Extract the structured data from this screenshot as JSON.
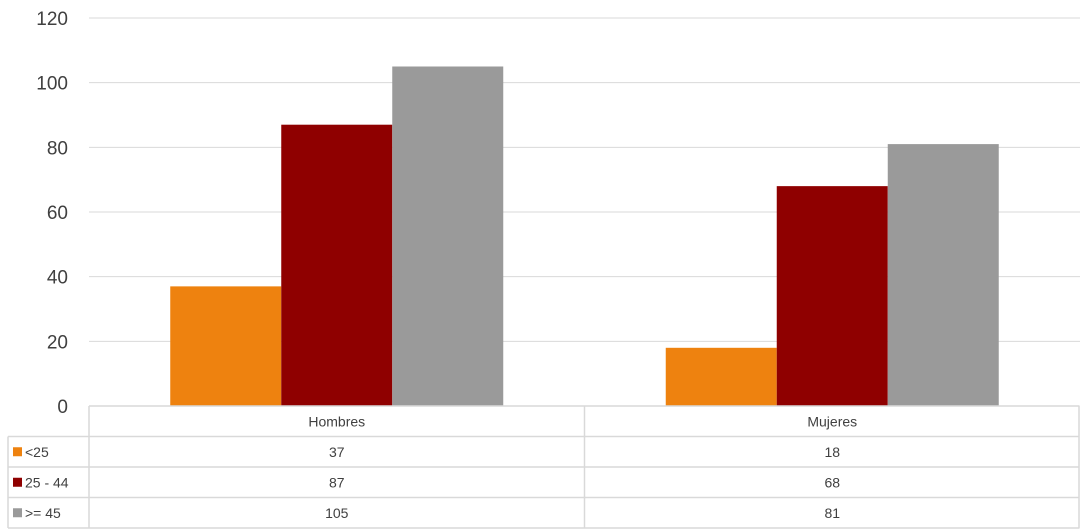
{
  "chart_data": {
    "type": "bar",
    "categories": [
      "Hombres",
      "Mujeres"
    ],
    "series": [
      {
        "name": "<25",
        "values": [
          37,
          18
        ],
        "color": "#EE820F"
      },
      {
        "name": "25 - 44",
        "values": [
          87,
          68
        ],
        "color": "#8F0000"
      },
      {
        "name": ">= 45",
        "values": [
          105,
          81
        ],
        "color": "#9A9A9A"
      }
    ],
    "ylim": [
      0,
      120
    ],
    "yticks": [
      0,
      20,
      40,
      60,
      80,
      100,
      120
    ],
    "grid": true,
    "legend": "data-table",
    "title": "",
    "xlabel": "",
    "ylabel": ""
  }
}
